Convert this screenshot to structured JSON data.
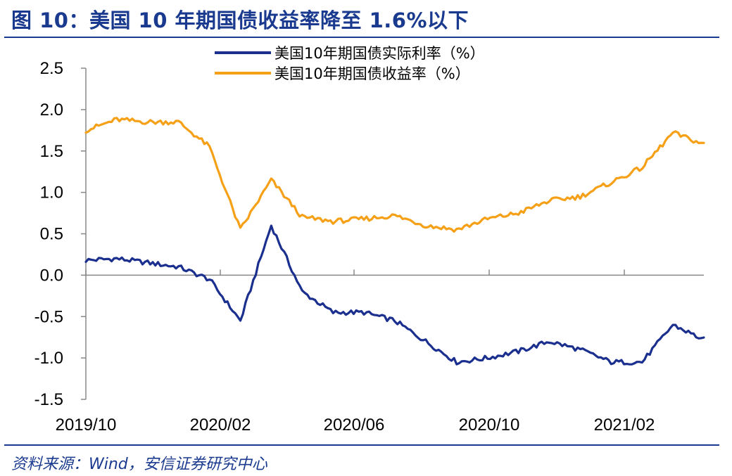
{
  "title": "图 10：美国 10 年期国债收益率降至 1.6%以下",
  "source": "资料来源：Wind，安信证券研究中心",
  "chart_data": {
    "type": "line",
    "title": "",
    "xlabel": "",
    "ylabel": "",
    "ylim": [
      -1.5,
      2.5
    ],
    "yticks": [
      "2.5",
      "2.0",
      "1.5",
      "1.0",
      "0.5",
      "0.0",
      "-0.5",
      "-1.0",
      "-1.5"
    ],
    "xticks": [
      "2019/10",
      "2020/02",
      "2020/06",
      "2020/10",
      "2021/02"
    ],
    "legend_position": "top-center",
    "grid": false,
    "x": [
      "2019/10",
      "2019/11",
      "2019/12",
      "2020/01",
      "2020/02",
      "2020/03a",
      "2020/03b",
      "2020/03c",
      "2020/04",
      "2020/05",
      "2020/06",
      "2020/07",
      "2020/08",
      "2020/09",
      "2020/10",
      "2020/11",
      "2020/12",
      "2021/01",
      "2021/02",
      "2021/03",
      "2021/04"
    ],
    "series": [
      {
        "name": "美国10年期国债实际利率（%）",
        "color": "#1b2f8f",
        "values": [
          0.18,
          0.2,
          0.15,
          0.1,
          -0.05,
          -0.55,
          0.6,
          -0.2,
          -0.45,
          -0.45,
          -0.55,
          -0.8,
          -1.05,
          -1.0,
          -0.92,
          -0.8,
          -0.9,
          -1.05,
          -1.05,
          -0.6,
          -0.78
        ]
      },
      {
        "name": "美国10年期国债收益率（%）",
        "color": "#f5a016",
        "values": [
          1.75,
          1.88,
          1.85,
          1.85,
          1.55,
          0.55,
          1.15,
          0.7,
          0.65,
          0.68,
          0.72,
          0.6,
          0.55,
          0.68,
          0.75,
          0.9,
          0.95,
          1.12,
          1.3,
          1.72,
          1.58
        ]
      }
    ]
  }
}
